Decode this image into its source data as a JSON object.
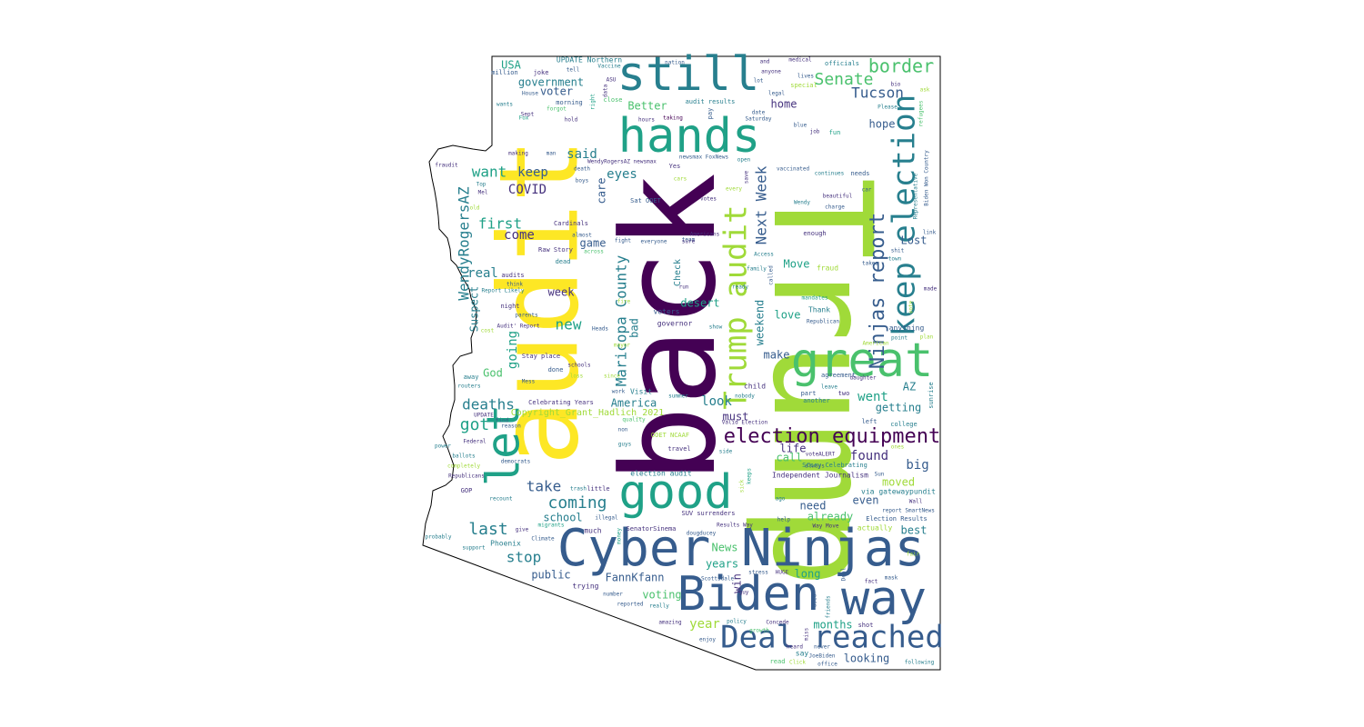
{
  "colors": {
    "background": "#ffffff",
    "outline": "#000000",
    "palette": [
      "#440154",
      "#46327e",
      "#365c8d",
      "#277f8e",
      "#1fa187",
      "#4ac16d",
      "#a0da39",
      "#fde725"
    ]
  },
  "words": {
    "Trump": "Trump",
    "back": "back",
    "audit": "audit",
    "Cyber_Ninjas": "Cyber Ninjas",
    "Biden": "Biden",
    "way": "way",
    "good": "good",
    "great": "great",
    "hands": "hands",
    "still": "still",
    "let": "let",
    "Deal_reached": "Deal reached",
    "Trump_audit": "Trump audit",
    "keep_election": "keep election",
    "election_equipment": "election equipment",
    "Ninjas_report": "Ninjas report",
    "border": "border",
    "Senate": "Senate",
    "Tucson": "Tucson",
    "WendyRogersAZ": "WendyRogersAZ",
    "Maricopa_County": "Maricopa County",
    "Next_Week": "Next Week",
    "deaths": "deaths",
    "got": "got",
    "last": "last",
    "take": "take",
    "coming": "coming",
    "stop": "stop",
    "first": "first",
    "want": "want",
    "keep": "keep",
    "COVID": "COVID",
    "said": "said",
    "come": "come",
    "real": "real",
    "new": "new",
    "going": "going",
    "week": "week",
    "Suspect": "Suspect",
    "eyes": "eyes",
    "care": "care",
    "government": "government",
    "USA": "USA",
    "voter": "voter",
    "Better": "Better",
    "home": "home",
    "hope": "hope",
    "went": "went",
    "AZ": "AZ",
    "getting": "getting",
    "look": "look",
    "must": "must",
    "America": "America",
    "make": "make",
    "love": "love",
    "weekend": "weekend",
    "found": "found",
    "big": "big",
    "moved": "moved",
    "need": "need",
    "even": "even",
    "already": "already",
    "best": "best",
    "school": "school",
    "public": "public",
    "years": "years",
    "News": "News",
    "voting": "voting",
    "year": "year",
    "months": "months",
    "looking": "looking",
    "FannKfann": "FannKfann",
    "long": "long",
    "win": "win",
    "life": "life",
    "call": "call",
    "desert": "desert",
    "Move": "Move",
    "Lost": "Lost",
    "game": "game",
    "bad": "bad",
    "God": "God",
    "copyright": "Copyright_Grant_Hadlich_2021",
    "Check": "Check",
    "UPDATE_Northern": "UPDATE Northern",
    "million": "million",
    "joke": "joke",
    "officials": "officials",
    "medical": "medical",
    "nation": "nation",
    "anyone": "anyone",
    "lives": "lives",
    "special": "special",
    "audit_results": "audit results",
    "morning": "morning",
    "hours": "hours",
    "taking": "taking",
    "Saturday": "Saturday",
    "Please": "Please",
    "fun": "fun",
    "job": "job",
    "blue": "blue",
    "needs": "needs",
    "continues": "continues",
    "vaccinated": "vaccinated",
    "beautiful": "beautiful",
    "charge": "charge",
    "Wendy": "Wendy",
    "Representative": "Representative",
    "enough": "enough",
    "Americans": "Americans",
    "team": "team",
    "takes": "takes",
    "shit": "shit",
    "town": "town",
    "fraud": "fraud",
    "family": "family",
    "called": "called",
    "ready": "ready",
    "run": "run",
    "mandates": "mandates",
    "made": "made",
    "Thank": "Thank",
    "Republican": "Republican",
    "anything": "anything",
    "point": "point",
    "governor": "governor",
    "voters": "voters",
    "show": "show",
    "agreement": "agreement",
    "daughter": "daughter",
    "leave": "leave",
    "two": "two",
    "part": "part",
    "another": "another",
    "child": "child",
    "nobody": "nobody",
    "sunrise": "sunrise",
    "college": "college",
    "left": "left",
    "Valid_Election": "Valid Election",
    "Independent_Journalism": "Independent Journalism",
    "Story_Celebrating": "Story Celebrating",
    "voteALERT": "voteALERT",
    "always": "always",
    "via_gatewaypundit": "via gatewaypundit",
    "Wall": "Wall",
    "report_SmartNews": "report SmartNews",
    "Election_Results": "Election Results",
    "actually": "actually",
    "Way_Move": "Way Move",
    "Results_Way": "Results Way",
    "dougducey": "dougducey",
    "SUV_surrenders": "SUV surrenders",
    "help": "help",
    "SenatorSinema": "SenatorSinema",
    "HUGE": "HUGE",
    "stress": "stress",
    "Scottsdale": "Scottsdale",
    "fact": "fact",
    "mask": "mask",
    "shot": "shot",
    "say": "say",
    "read": "read",
    "office": "office",
    "following": "following",
    "enjoy": "enjoy",
    "amazing": "amazing",
    "reported": "reported",
    "really": "really",
    "Concede": "Concede",
    "policy": "policy",
    "trying": "trying",
    "number": "number",
    "election_audit": "election audit",
    "travel": "travel",
    "Cardinals": "Cardinals",
    "almost": "almost",
    "Raw_Story": "Raw Story",
    "dead": "dead",
    "Celebrating_Years": "Celebrating Years",
    "Visit": "Visit",
    "work": "work",
    "done": "done",
    "schools": "schools",
    "Stay_place": "Stay place",
    "audits": "audits",
    "think": "think",
    "Report_Likely": "Report Likely",
    "night": "night",
    "parents": "parents",
    "Audit_Report": "Audit' Report",
    "Heads": "Heads",
    "routers": "routers",
    "away": "away",
    "Mess": "Mess",
    "UPDATE": "UPDATE",
    "find": "find",
    "reason": "reason",
    "Federal": "Federal",
    "power": "power",
    "ballots": "ballots",
    "completely": "completely",
    "democrats": "democrats",
    "Republicans": "Republicans",
    "GOP": "GOP",
    "recount": "recount",
    "little": "little",
    "trash": "trash",
    "migrants": "migrants",
    "give": "give",
    "Climate": "Climate",
    "Phoenix": "Phoenix",
    "much": "much",
    "illegal": "illegal",
    "support": "support",
    "probably": "probably",
    "fraudit": "fraudit",
    "Sept": "Sept",
    "wants": "wants",
    "Fox": "Fox",
    "House": "House",
    "forgot": "forgot",
    "making": "making",
    "man": "man",
    "Yes": "Yes",
    "boys": "boys",
    "Sat_OOET": "Sat OOET",
    "fight": "fight",
    "everyone": "everyone",
    "sure": "sure",
    "Access": "Access",
    "OOET_NCAAF": "OOET NCAAF",
    "non": "non",
    "guys": "guys",
    "quality": "quality",
    "summer": "summer",
    "cost": "cost",
    "ASU": "ASU",
    "data": "data",
    "hold": "hold",
    "open": "open",
    "votes": "votes",
    "every": "every",
    "Top": "Top",
    "Mel": "Mel",
    "newsmax": "WendyRogersAZ newsmax",
    "FoxNews": "newsmax FoxNews",
    "Sun": "Sun",
    "bio": "bio",
    "lot": "lot",
    "vaccine": "Vaccine",
    "tell": "tell",
    "close": "close",
    "pay": "pay",
    "date": "date",
    "legal": "legal",
    "Biden_Won_Country": "Biden Won Country",
    "refugees": "refugees",
    "link": "link",
    "death": "death",
    "days": "days",
    "ones": "ones",
    "Deal": "Deal",
    "guy": "guy",
    "never": "never",
    "heard": "heard",
    "JoeBiden": "JoeBiden",
    "ago": "ago",
    "friends": "friends",
    "used": "used",
    "miss": "miss",
    "growth": "growth",
    "side": "side",
    "lead": "lead",
    "led": "led",
    "money": "money",
    "fair": "fair",
    "sick": "sick",
    "across": "across",
    "Click": "Click",
    "and": "and",
    "right": "right",
    "right2": "right",
    "cars": "cars",
    "flame": "flame",
    "save": "save",
    "car": "car",
    "Don": "Don",
    "American": "American",
    "vote": "vote",
    "old": "old",
    "plan": "plan",
    "since": "since",
    "Rights": "Rights",
    "mayor": "mayor",
    "loss": "loss",
    "fire": "fire",
    "ask": "ask",
    "big2": "stop",
    "keeps": "keeps"
  }
}
